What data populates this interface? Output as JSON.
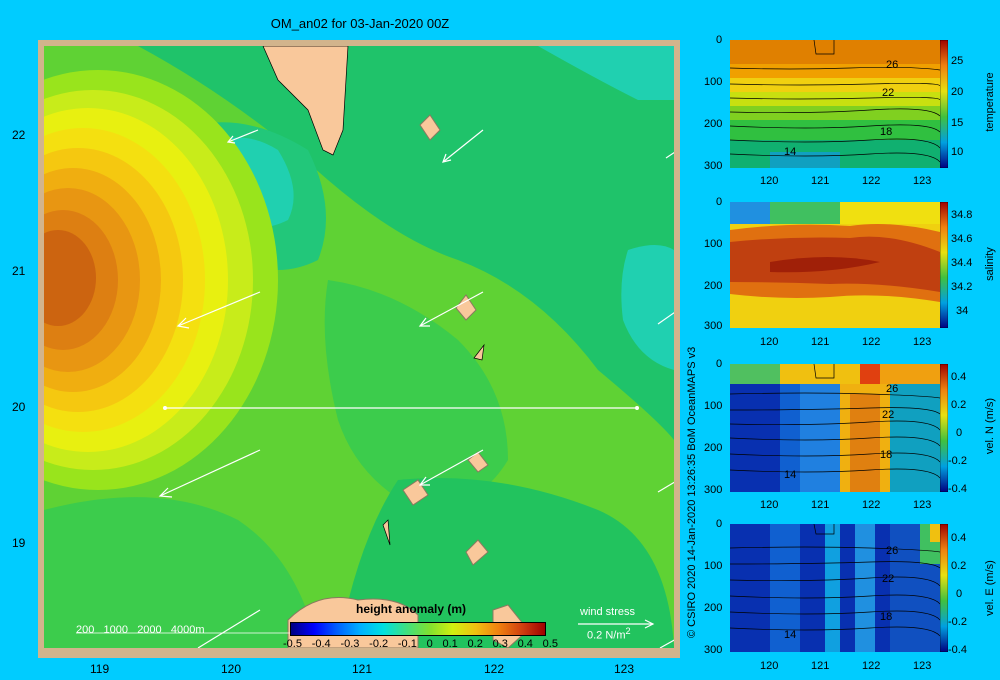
{
  "map": {
    "title": "OM_an02 for 03-Jan-2020 00Z",
    "lat_ticks": [
      "22",
      "21",
      "20",
      "19"
    ],
    "lon_ticks": [
      "119",
      "120",
      "121",
      "122",
      "123"
    ],
    "depth_legend": [
      "200",
      "1000",
      "2000",
      "4000m"
    ],
    "colorbar": {
      "label": "height anomaly  (m)",
      "ticks": [
        "-0.5",
        "-0.4",
        "-0.3",
        "-0.2",
        "-0.1",
        "0",
        "0.1",
        "0.2",
        "0.3",
        "0.4",
        "0.5"
      ]
    },
    "wind": {
      "label": "wind stress",
      "scale": "0.2 N/m",
      "sup": "2"
    },
    "section_line": {
      "lon_start": 119.5,
      "lon_end": 123.0,
      "lat": 20.0
    }
  },
  "credit": "© CSIRO 2020   14-Jan-2020 13:26:35 BoM OceanMAPS v3",
  "panels": [
    {
      "y_ticks": [
        "0",
        "100",
        "200",
        "300"
      ],
      "x_ticks": [
        "120",
        "121",
        "122",
        "123"
      ],
      "cbar_ticks": [
        "25",
        "20",
        "15",
        "10"
      ],
      "cbar_label": "temperature",
      "contour_labels": [
        "26",
        "22",
        "18",
        "14"
      ]
    },
    {
      "y_ticks": [
        "0",
        "100",
        "200",
        "300"
      ],
      "x_ticks": [
        "120",
        "121",
        "122",
        "123"
      ],
      "cbar_ticks": [
        "34.8",
        "34.6",
        "34.4",
        "34.2",
        "34"
      ],
      "cbar_label": "salinity",
      "contour_labels": []
    },
    {
      "y_ticks": [
        "0",
        "100",
        "200",
        "300"
      ],
      "x_ticks": [
        "120",
        "121",
        "122",
        "123"
      ],
      "cbar_ticks": [
        "0.4",
        "0.2",
        "0",
        "-0.2",
        "-0.4"
      ],
      "cbar_label": "vel. N  (m/s)",
      "contour_labels": [
        "26",
        "22",
        "18",
        "14"
      ]
    },
    {
      "y_ticks": [
        "0",
        "100",
        "200",
        "300"
      ],
      "x_ticks": [
        "120",
        "121",
        "122",
        "123"
      ],
      "cbar_ticks": [
        "0.4",
        "0.2",
        "0",
        "-0.2",
        "-0.4"
      ],
      "cbar_label": "vel. E  (m/s)",
      "contour_labels": [
        "26",
        "22",
        "18",
        "14"
      ]
    }
  ],
  "colors": {
    "background": "#00ccff",
    "land": "#f9c89b",
    "frame": "#d2b48c"
  }
}
